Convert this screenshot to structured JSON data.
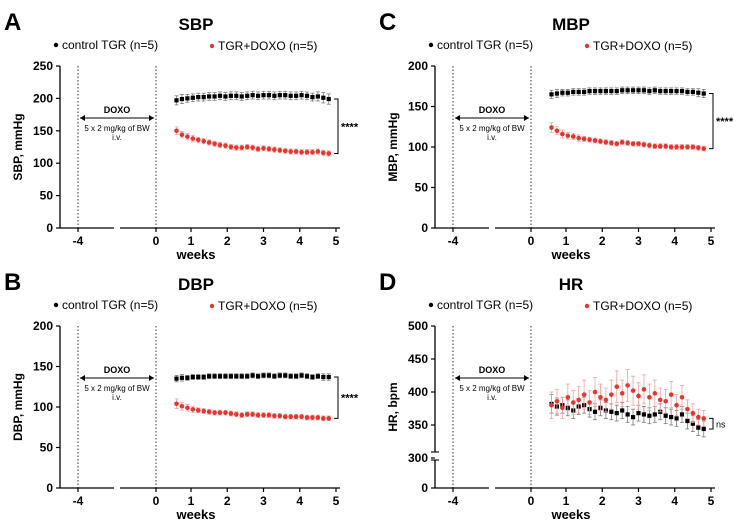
{
  "chart_data": [
    {
      "type": "line",
      "panel_label": "A",
      "title": "SBP",
      "ylabel": "SBP, mmHg",
      "xlabel": "weeks",
      "ylim": [
        0,
        250
      ],
      "yticks": [
        "0",
        "50",
        "100",
        "150",
        "200",
        "250"
      ],
      "ytick_values": [
        0,
        50,
        100,
        150,
        200,
        250
      ],
      "xticks": [
        "-4",
        "0",
        "1",
        "2",
        "3",
        "4",
        "5"
      ],
      "xtick_values": [
        -4,
        0,
        1,
        2,
        3,
        4,
        5
      ],
      "legend": [
        "control TGR (n=5)",
        "TGR+DOXO (n=5)"
      ],
      "doxo_label": "DOXO",
      "dose_line1": "5 x 2 mg/kg of BW",
      "dose_line2": "i.v.",
      "significance": "****",
      "ybreak": false,
      "series": [
        {
          "name": "control TGR (n=5)",
          "color": "#000000",
          "x": [
            0.6,
            0.75,
            0.9,
            1.05,
            1.2,
            1.35,
            1.5,
            1.65,
            1.8,
            1.95,
            2.1,
            2.25,
            2.4,
            2.55,
            2.7,
            2.85,
            3.0,
            3.15,
            3.3,
            3.45,
            3.6,
            3.75,
            3.9,
            4.05,
            4.2,
            4.35,
            4.5,
            4.65,
            4.8
          ],
          "values": [
            197,
            199,
            200,
            201,
            202,
            202,
            203,
            203,
            204,
            203,
            204,
            204,
            203,
            204,
            205,
            204,
            205,
            205,
            204,
            205,
            205,
            204,
            204,
            205,
            204,
            202,
            203,
            201,
            199
          ],
          "errors": [
            7,
            7,
            6,
            6,
            6,
            6,
            6,
            6,
            6,
            6,
            6,
            6,
            6,
            6,
            6,
            6,
            6,
            6,
            6,
            6,
            6,
            6,
            6,
            6,
            6,
            6,
            7,
            8,
            8
          ]
        },
        {
          "name": "TGR+DOXO (n=5)",
          "color": "#e8332e",
          "x": [
            0.6,
            0.75,
            0.9,
            1.05,
            1.2,
            1.35,
            1.5,
            1.65,
            1.8,
            1.95,
            2.1,
            2.25,
            2.4,
            2.55,
            2.7,
            2.85,
            3.0,
            3.15,
            3.3,
            3.45,
            3.6,
            3.75,
            3.9,
            4.05,
            4.2,
            4.35,
            4.5,
            4.65,
            4.8
          ],
          "values": [
            150,
            144,
            141,
            138,
            136,
            134,
            132,
            130,
            128,
            127,
            125,
            124,
            124,
            125,
            124,
            122,
            123,
            122,
            121,
            120,
            119,
            118,
            118,
            117,
            117,
            117,
            118,
            116,
            115
          ],
          "errors": [
            6,
            5,
            5,
            5,
            4,
            4,
            4,
            4,
            4,
            4,
            4,
            4,
            4,
            4,
            4,
            4,
            4,
            4,
            4,
            4,
            4,
            4,
            4,
            4,
            4,
            4,
            4,
            4,
            4
          ]
        }
      ]
    },
    {
      "type": "line",
      "panel_label": "C",
      "title": "MBP",
      "ylabel": "MBP, mmHg",
      "xlabel": "weeks",
      "ylim": [
        0,
        200
      ],
      "yticks": [
        "0",
        "50",
        "100",
        "150",
        "200"
      ],
      "ytick_values": [
        0,
        50,
        100,
        150,
        200
      ],
      "xticks": [
        "-4",
        "0",
        "1",
        "2",
        "3",
        "4",
        "5"
      ],
      "xtick_values": [
        -4,
        0,
        1,
        2,
        3,
        4,
        5
      ],
      "legend": [
        "control TGR (n=5)",
        "TGR+DOXO (n=5)"
      ],
      "doxo_label": "DOXO",
      "dose_line1": "5 x 2 mg/kg of BW",
      "dose_line2": "i.v.",
      "significance": "****",
      "ybreak": false,
      "series": [
        {
          "name": "control TGR (n=5)",
          "color": "#000000",
          "x": [
            0.6,
            0.75,
            0.9,
            1.05,
            1.2,
            1.35,
            1.5,
            1.65,
            1.8,
            1.95,
            2.1,
            2.25,
            2.4,
            2.55,
            2.7,
            2.85,
            3.0,
            3.15,
            3.3,
            3.45,
            3.6,
            3.75,
            3.9,
            4.05,
            4.2,
            4.35,
            4.5,
            4.65,
            4.8
          ],
          "values": [
            165,
            166,
            167,
            167,
            168,
            168,
            168,
            169,
            169,
            169,
            169,
            169,
            169,
            170,
            170,
            170,
            170,
            170,
            169,
            170,
            169,
            169,
            169,
            169,
            169,
            168,
            168,
            167,
            166
          ],
          "errors": [
            5,
            5,
            4,
            4,
            4,
            4,
            4,
            4,
            4,
            4,
            4,
            4,
            4,
            4,
            4,
            4,
            4,
            4,
            4,
            4,
            4,
            4,
            4,
            4,
            4,
            4,
            4,
            5,
            5
          ]
        },
        {
          "name": "TGR+DOXO (n=5)",
          "color": "#e8332e",
          "x": [
            0.6,
            0.75,
            0.9,
            1.05,
            1.2,
            1.35,
            1.5,
            1.65,
            1.8,
            1.95,
            2.1,
            2.25,
            2.4,
            2.55,
            2.7,
            2.85,
            3.0,
            3.15,
            3.3,
            3.45,
            3.6,
            3.75,
            3.9,
            4.05,
            4.2,
            4.35,
            4.5,
            4.65,
            4.8
          ],
          "values": [
            124,
            120,
            116,
            114,
            113,
            111,
            110,
            109,
            108,
            107,
            106,
            105,
            104,
            106,
            105,
            104,
            104,
            103,
            102,
            101,
            101,
            101,
            100,
            100,
            100,
            100,
            100,
            99,
            98
          ],
          "errors": [
            6,
            5,
            5,
            4,
            4,
            4,
            3,
            3,
            3,
            3,
            3,
            3,
            3,
            3,
            3,
            3,
            3,
            3,
            3,
            3,
            3,
            3,
            3,
            3,
            3,
            3,
            3,
            3,
            3
          ]
        }
      ]
    },
    {
      "type": "line",
      "panel_label": "B",
      "title": "DBP",
      "ylabel": "DBP, mmHg",
      "xlabel": "weeks",
      "ylim": [
        0,
        200
      ],
      "yticks": [
        "0",
        "50",
        "100",
        "150",
        "200"
      ],
      "ytick_values": [
        0,
        50,
        100,
        150,
        200
      ],
      "xticks": [
        "-4",
        "0",
        "1",
        "2",
        "3",
        "4",
        "5"
      ],
      "xtick_values": [
        -4,
        0,
        1,
        2,
        3,
        4,
        5
      ],
      "legend": [
        "control TGR (n=5)",
        "TGR+DOXO (n=5)"
      ],
      "doxo_label": "DOXO",
      "dose_line1": "5 x 2 mg/kg of BW",
      "dose_line2": "i.v.",
      "significance": "****",
      "ybreak": false,
      "series": [
        {
          "name": "control TGR (n=5)",
          "color": "#000000",
          "x": [
            0.6,
            0.75,
            0.9,
            1.05,
            1.2,
            1.35,
            1.5,
            1.65,
            1.8,
            1.95,
            2.1,
            2.25,
            2.4,
            2.55,
            2.7,
            2.85,
            3.0,
            3.15,
            3.3,
            3.45,
            3.6,
            3.75,
            3.9,
            4.05,
            4.2,
            4.35,
            4.5,
            4.65,
            4.8
          ],
          "values": [
            135,
            136,
            136,
            137,
            137,
            137,
            138,
            138,
            138,
            138,
            138,
            138,
            138,
            138,
            139,
            138,
            139,
            139,
            138,
            139,
            139,
            138,
            138,
            139,
            138,
            137,
            138,
            137,
            137
          ],
          "errors": [
            4,
            4,
            3,
            3,
            3,
            3,
            3,
            3,
            3,
            3,
            3,
            3,
            3,
            3,
            3,
            3,
            3,
            3,
            3,
            3,
            3,
            3,
            3,
            3,
            3,
            3,
            3,
            4,
            4
          ]
        },
        {
          "name": "TGR+DOXO (n=5)",
          "color": "#e8332e",
          "x": [
            0.6,
            0.75,
            0.9,
            1.05,
            1.2,
            1.35,
            1.5,
            1.65,
            1.8,
            1.95,
            2.1,
            2.25,
            2.4,
            2.55,
            2.7,
            2.85,
            3.0,
            3.15,
            3.3,
            3.45,
            3.6,
            3.75,
            3.9,
            4.05,
            4.2,
            4.35,
            4.5,
            4.65,
            4.8
          ],
          "values": [
            104,
            101,
            99,
            97,
            96,
            95,
            94,
            93,
            93,
            93,
            92,
            91,
            90,
            91,
            91,
            90,
            90,
            90,
            89,
            89,
            88,
            88,
            88,
            88,
            87,
            87,
            87,
            86,
            86
          ],
          "errors": [
            6,
            5,
            4,
            4,
            3,
            3,
            3,
            3,
            3,
            3,
            3,
            3,
            3,
            3,
            3,
            3,
            3,
            3,
            3,
            3,
            3,
            3,
            3,
            3,
            3,
            3,
            3,
            3,
            3
          ]
        }
      ]
    },
    {
      "type": "line",
      "panel_label": "D",
      "title": "HR",
      "ylabel": "HR, bpm",
      "xlabel": "weeks",
      "ylim": [
        0,
        500
      ],
      "yticks": [
        "0",
        "300",
        "350",
        "400",
        "450",
        "500"
      ],
      "ytick_values": [
        0,
        300,
        350,
        400,
        450,
        500
      ],
      "xticks": [
        "-4",
        "0",
        "1",
        "2",
        "3",
        "4",
        "5"
      ],
      "xtick_values": [
        -4,
        0,
        1,
        2,
        3,
        4,
        5
      ],
      "legend": [
        "control TGR (n=5)",
        "TGR+DOXO (n=5)"
      ],
      "doxo_label": "DOXO",
      "dose_line1": "5 x 2 mg/kg of BW",
      "dose_line2": "i.v.",
      "significance": "ns",
      "ybreak": true,
      "series": [
        {
          "name": "control TGR (n=5)",
          "color": "#000000",
          "x": [
            0.6,
            0.75,
            0.9,
            1.05,
            1.2,
            1.35,
            1.5,
            1.65,
            1.8,
            1.95,
            2.1,
            2.25,
            2.4,
            2.55,
            2.7,
            2.85,
            3.0,
            3.15,
            3.3,
            3.45,
            3.6,
            3.75,
            3.9,
            4.05,
            4.2,
            4.35,
            4.5,
            4.65,
            4.8
          ],
          "values": [
            382,
            378,
            380,
            376,
            372,
            378,
            380,
            374,
            370,
            376,
            372,
            370,
            368,
            372,
            366,
            362,
            368,
            366,
            364,
            366,
            370,
            364,
            362,
            360,
            366,
            356,
            352,
            346,
            344
          ],
          "errors": [
            14,
            13,
            12,
            12,
            12,
            12,
            12,
            12,
            12,
            12,
            12,
            12,
            12,
            12,
            12,
            12,
            12,
            12,
            12,
            12,
            12,
            12,
            12,
            12,
            12,
            12,
            12,
            12,
            12
          ]
        },
        {
          "name": "TGR+DOXO (n=5)",
          "color": "#e8332e",
          "x": [
            0.6,
            0.75,
            0.9,
            1.05,
            1.2,
            1.35,
            1.5,
            1.65,
            1.8,
            1.95,
            2.1,
            2.25,
            2.4,
            2.55,
            2.7,
            2.85,
            3.0,
            3.15,
            3.3,
            3.45,
            3.6,
            3.75,
            3.9,
            4.05,
            4.2,
            4.35,
            4.5,
            4.65,
            4.8
          ],
          "values": [
            380,
            386,
            376,
            392,
            384,
            388,
            396,
            384,
            400,
            392,
            388,
            396,
            408,
            398,
            410,
            402,
            394,
            404,
            392,
            398,
            388,
            386,
            396,
            380,
            392,
            374,
            368,
            362,
            360
          ],
          "errors": [
            20,
            18,
            16,
            20,
            18,
            20,
            22,
            18,
            22,
            20,
            18,
            22,
            24,
            20,
            24,
            22,
            20,
            22,
            20,
            20,
            18,
            18,
            20,
            16,
            18,
            14,
            14,
            12,
            12
          ]
        }
      ]
    }
  ]
}
